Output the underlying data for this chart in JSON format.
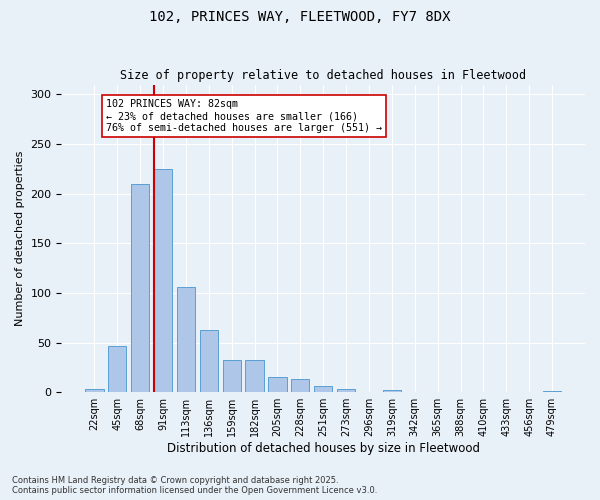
{
  "title1": "102, PRINCES WAY, FLEETWOOD, FY7 8DX",
  "title2": "Size of property relative to detached houses in Fleetwood",
  "xlabel": "Distribution of detached houses by size in Fleetwood",
  "ylabel": "Number of detached properties",
  "categories": [
    "22sqm",
    "45sqm",
    "68sqm",
    "91sqm",
    "113sqm",
    "136sqm",
    "159sqm",
    "182sqm",
    "205sqm",
    "228sqm",
    "251sqm",
    "273sqm",
    "296sqm",
    "319sqm",
    "342sqm",
    "365sqm",
    "388sqm",
    "410sqm",
    "433sqm",
    "456sqm",
    "479sqm"
  ],
  "values": [
    3,
    47,
    210,
    225,
    106,
    63,
    32,
    32,
    15,
    13,
    6,
    3,
    0,
    2,
    0,
    0,
    0,
    0,
    0,
    0,
    1
  ],
  "bar_color": "#aec6e8",
  "bar_edge_color": "#5a9fd4",
  "vline_x": 2.6,
  "vline_color": "#cc0000",
  "annotation_text": "102 PRINCES WAY: 82sqm\n← 23% of detached houses are smaller (166)\n76% of semi-detached houses are larger (551) →",
  "annotation_box_color": "#ffffff",
  "annotation_box_edge_color": "#cc0000",
  "ylim": [
    0,
    310
  ],
  "yticks": [
    0,
    50,
    100,
    150,
    200,
    250,
    300
  ],
  "background_color": "#e8f0f8",
  "footnote": "Contains HM Land Registry data © Crown copyright and database right 2025.\nContains public sector information licensed under the Open Government Licence v3.0."
}
